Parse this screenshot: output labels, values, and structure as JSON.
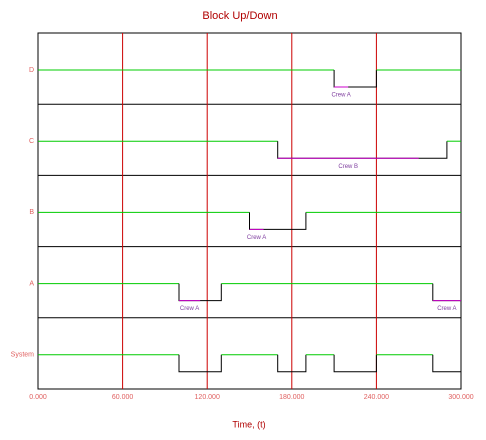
{
  "chart_data": {
    "type": "block-updown",
    "title": "Block Up/Down",
    "x_label": "Time, (t)",
    "xlim": [
      0,
      300000
    ],
    "xticks": [
      {
        "value": 0,
        "label": "0.000"
      },
      {
        "value": 60000,
        "label": "60.000"
      },
      {
        "value": 120000,
        "label": "120.000"
      },
      {
        "value": 180000,
        "label": "180.000"
      },
      {
        "value": 240000,
        "label": "240.000"
      },
      {
        "value": 300000,
        "label": "300.000"
      }
    ],
    "grid": true,
    "grid_color": "#cc0000",
    "up_color": "#00cc00",
    "down_color": "#000000",
    "crew_color": "#cc00cc",
    "series": [
      {
        "name": "D",
        "down": [
          [
            210000,
            240000
          ]
        ],
        "crew": [
          {
            "name": "Crew A",
            "start": 210000,
            "end": 220000
          }
        ]
      },
      {
        "name": "C",
        "down": [
          [
            170000,
            290000
          ]
        ],
        "crew": [
          {
            "name": "Crew B",
            "start": 170000,
            "end": 270000
          }
        ]
      },
      {
        "name": "B",
        "down": [
          [
            150000,
            190000
          ]
        ],
        "crew": [
          {
            "name": "Crew A",
            "start": 150000,
            "end": 160000
          }
        ]
      },
      {
        "name": "A",
        "down": [
          [
            100000,
            130000
          ],
          [
            280000,
            300000
          ]
        ],
        "crew": [
          {
            "name": "Crew A",
            "start": 100000,
            "end": 115000
          },
          {
            "name": "Crew A",
            "start": 280000,
            "end": 300000
          }
        ]
      },
      {
        "name": "System",
        "down": [
          [
            100000,
            130000
          ],
          [
            170000,
            190000
          ],
          [
            210000,
            240000
          ],
          [
            280000,
            300000
          ]
        ],
        "crew": []
      }
    ]
  }
}
